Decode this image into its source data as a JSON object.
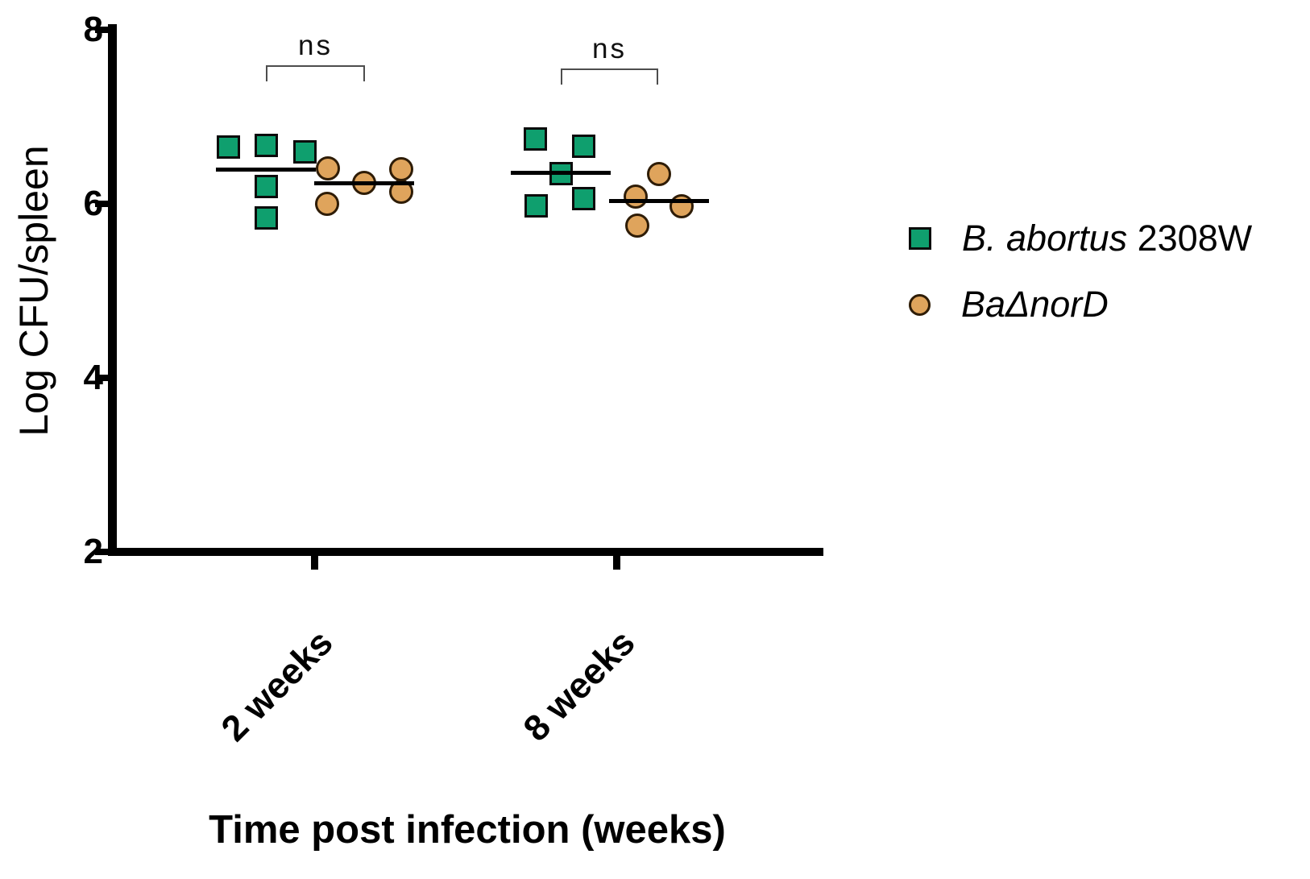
{
  "figure": {
    "legend": {
      "items": [
        {
          "marker": "square",
          "color": "#0f9f6e",
          "text_italic": "B. abortus",
          "text_regular": " 2308W"
        },
        {
          "marker": "circle",
          "color": "#dfa45c",
          "text_italic": "BaΔnorD",
          "text_regular": ""
        }
      ]
    }
  },
  "chart_data": {
    "type": "scatter",
    "title": "",
    "xlabel": "Time post infection (weeks)",
    "ylabel": "Log CFU/spleen",
    "categories": [
      "2 weeks",
      "8 weeks"
    ],
    "y_ticks": [
      2,
      4,
      6,
      8
    ],
    "ylim": [
      2,
      8
    ],
    "grid": false,
    "legend_position": "right",
    "center_line": "mean",
    "series": [
      {
        "name": "B. abortus 2308W",
        "marker": "square",
        "color": "#0f9f6e",
        "groups": [
          {
            "category": "2 weeks",
            "mean": 6.39,
            "points": [
              {
                "v": 6.65,
                "dx": -47
              },
              {
                "v": 6.67,
                "dx": 0
              },
              {
                "v": 6.6,
                "dx": 48
              },
              {
                "v": 6.2,
                "dx": 0
              },
              {
                "v": 5.84,
                "dx": 0
              }
            ]
          },
          {
            "category": "8 weeks",
            "mean": 6.36,
            "points": [
              {
                "v": 6.75,
                "dx": -32
              },
              {
                "v": 6.66,
                "dx": 28
              },
              {
                "v": 6.35,
                "dx": 0
              },
              {
                "v": 5.98,
                "dx": -31
              },
              {
                "v": 6.06,
                "dx": 28
              }
            ]
          }
        ]
      },
      {
        "name": "BaΔnorD",
        "marker": "circle",
        "color": "#dfa45c",
        "groups": [
          {
            "category": "2 weeks",
            "mean": 6.24,
            "points": [
              {
                "v": 6.41,
                "dx": -45
              },
              {
                "v": 6.4,
                "dx": 46
              },
              {
                "v": 6.24,
                "dx": 0
              },
              {
                "v": 6.14,
                "dx": 46
              },
              {
                "v": 6.0,
                "dx": -46
              }
            ]
          },
          {
            "category": "8 weeks",
            "mean": 6.03,
            "points": [
              {
                "v": 6.34,
                "dx": 0
              },
              {
                "v": 6.08,
                "dx": -29
              },
              {
                "v": 5.97,
                "dx": 28
              },
              {
                "v": 5.75,
                "dx": -27
              }
            ]
          }
        ]
      }
    ],
    "annotations": [
      {
        "text": "ns",
        "category": "2 weeks",
        "between": [
          "B. abortus 2308W",
          "BaΔnorD"
        ]
      },
      {
        "text": "ns",
        "category": "8 weeks",
        "between": [
          "B. abortus 2308W",
          "BaΔnorD"
        ]
      }
    ]
  }
}
